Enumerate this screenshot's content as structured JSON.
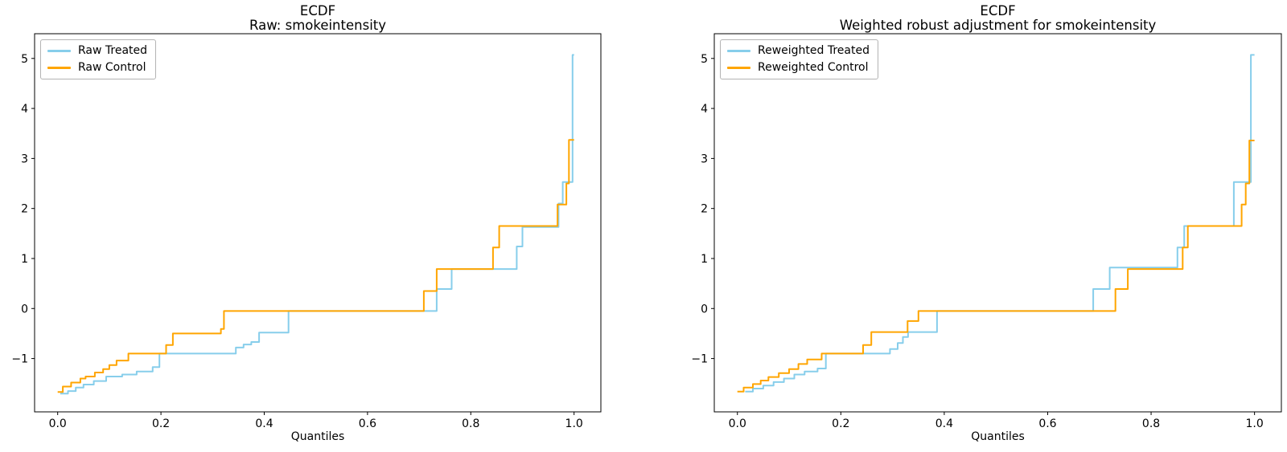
{
  "figure": {
    "background": "#ffffff"
  },
  "chart_data": [
    {
      "id": "ecdf-raw",
      "type": "line",
      "step_mode": "steps-post",
      "title_line1": "ECDF",
      "title_line2": "Raw: smokeintensity",
      "xlabel": "Quantiles",
      "grid": false,
      "legend_position": "upper left",
      "xlim": [
        -0.0447,
        1.0519
      ],
      "ylim": [
        -2.066,
        5.494
      ],
      "x_ticks": {
        "values": [
          0.0,
          0.2,
          0.4,
          0.6,
          0.8,
          1.0
        ],
        "labels": [
          "0.0",
          "0.2",
          "0.4",
          "0.6",
          "0.8",
          "1.0"
        ]
      },
      "y_ticks": {
        "values": [
          -1,
          0,
          1,
          2,
          3,
          4,
          5
        ],
        "labels": [
          "−1",
          "0",
          "1",
          "2",
          "3",
          "4",
          "5"
        ]
      },
      "series": [
        {
          "name": "Raw Treated",
          "color": "#87CEEB",
          "points": [
            [
              0.005,
              -1.7
            ],
            [
              0.02,
              -1.65
            ],
            [
              0.035,
              -1.58
            ],
            [
              0.05,
              -1.52
            ],
            [
              0.07,
              -1.45
            ],
            [
              0.094,
              -1.36
            ],
            [
              0.125,
              -1.32
            ],
            [
              0.153,
              -1.26
            ],
            [
              0.184,
              -1.17
            ],
            [
              0.197,
              -0.9
            ],
            [
              0.345,
              -0.78
            ],
            [
              0.36,
              -0.72
            ],
            [
              0.375,
              -0.67
            ],
            [
              0.39,
              -0.48
            ],
            [
              0.447,
              -0.05
            ],
            [
              0.734,
              0.39
            ],
            [
              0.763,
              0.79
            ],
            [
              0.889,
              1.24
            ],
            [
              0.9,
              1.63
            ],
            [
              0.97,
              2.1
            ],
            [
              0.978,
              2.53
            ],
            [
              0.997,
              5.07
            ],
            [
              1.0,
              5.07
            ]
          ]
        },
        {
          "name": "Raw Control",
          "color": "#FFA500",
          "points": [
            [
              0.0,
              -1.67
            ],
            [
              0.01,
              -1.56
            ],
            [
              0.026,
              -1.48
            ],
            [
              0.044,
              -1.4
            ],
            [
              0.054,
              -1.36
            ],
            [
              0.072,
              -1.28
            ],
            [
              0.088,
              -1.21
            ],
            [
              0.1,
              -1.13
            ],
            [
              0.114,
              -1.04
            ],
            [
              0.137,
              -0.9
            ],
            [
              0.21,
              -0.73
            ],
            [
              0.223,
              -0.5
            ],
            [
              0.316,
              -0.41
            ],
            [
              0.322,
              -0.05
            ],
            [
              0.709,
              0.35
            ],
            [
              0.734,
              0.79
            ],
            [
              0.843,
              1.22
            ],
            [
              0.855,
              1.65
            ],
            [
              0.968,
              2.08
            ],
            [
              0.985,
              2.5
            ],
            [
              0.99,
              3.37
            ],
            [
              1.0,
              3.37
            ]
          ]
        }
      ]
    },
    {
      "id": "ecdf-weighted",
      "type": "line",
      "step_mode": "steps-post",
      "title_line1": "ECDF",
      "title_line2": "Weighted robust adjustment for smokeintensity",
      "xlabel": "Quantiles",
      "grid": false,
      "legend_position": "upper left",
      "xlim": [
        -0.0447,
        1.0519
      ],
      "ylim": [
        -2.066,
        5.494
      ],
      "x_ticks": {
        "values": [
          0.0,
          0.2,
          0.4,
          0.6,
          0.8,
          1.0
        ],
        "labels": [
          "0.0",
          "0.2",
          "0.4",
          "0.6",
          "0.8",
          "1.0"
        ]
      },
      "y_ticks": {
        "values": [
          -1,
          0,
          1,
          2,
          3,
          4,
          5
        ],
        "labels": [
          "−1",
          "0",
          "1",
          "2",
          "3",
          "4",
          "5"
        ]
      },
      "series": [
        {
          "name": "Reweighted Treated",
          "color": "#87CEEB",
          "points": [
            [
              0.015,
              -1.66
            ],
            [
              0.03,
              -1.6
            ],
            [
              0.05,
              -1.54
            ],
            [
              0.07,
              -1.47
            ],
            [
              0.09,
              -1.4
            ],
            [
              0.11,
              -1.32
            ],
            [
              0.13,
              -1.26
            ],
            [
              0.155,
              -1.2
            ],
            [
              0.171,
              -0.9
            ],
            [
              0.295,
              -0.81
            ],
            [
              0.31,
              -0.69
            ],
            [
              0.32,
              -0.57
            ],
            [
              0.33,
              -0.47
            ],
            [
              0.386,
              -0.05
            ],
            [
              0.688,
              0.39
            ],
            [
              0.72,
              0.82
            ],
            [
              0.851,
              1.22
            ],
            [
              0.864,
              1.65
            ],
            [
              0.96,
              2.53
            ],
            [
              0.993,
              5.07
            ],
            [
              1.0,
              5.07
            ]
          ]
        },
        {
          "name": "Reweighted Control",
          "color": "#FFA500",
          "points": [
            [
              0.0,
              -1.66
            ],
            [
              0.012,
              -1.58
            ],
            [
              0.03,
              -1.51
            ],
            [
              0.045,
              -1.44
            ],
            [
              0.06,
              -1.37
            ],
            [
              0.08,
              -1.29
            ],
            [
              0.1,
              -1.21
            ],
            [
              0.118,
              -1.11
            ],
            [
              0.135,
              -1.02
            ],
            [
              0.163,
              -0.9
            ],
            [
              0.243,
              -0.73
            ],
            [
              0.259,
              -0.47
            ],
            [
              0.329,
              -0.25
            ],
            [
              0.35,
              -0.05
            ],
            [
              0.731,
              0.39
            ],
            [
              0.755,
              0.79
            ],
            [
              0.861,
              1.22
            ],
            [
              0.871,
              1.65
            ],
            [
              0.975,
              2.08
            ],
            [
              0.983,
              2.5
            ],
            [
              0.99,
              3.36
            ],
            [
              1.0,
              3.36
            ]
          ]
        }
      ]
    }
  ],
  "axis_style": {
    "spine_color": "#000000",
    "tick_color": "#000000",
    "label_color": "#000000"
  }
}
